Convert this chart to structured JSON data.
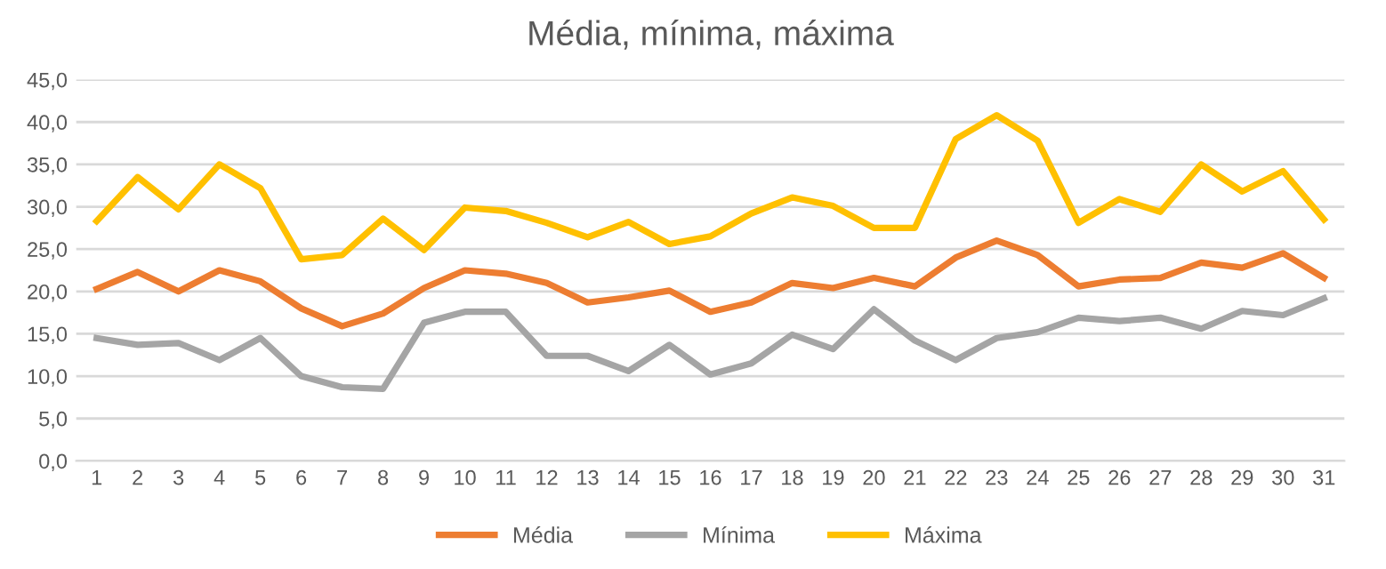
{
  "chart_data": {
    "type": "line",
    "title": "Média, mínima, máxima",
    "categories": [
      "1",
      "2",
      "3",
      "4",
      "5",
      "6",
      "7",
      "8",
      "9",
      "10",
      "11",
      "12",
      "13",
      "14",
      "15",
      "16",
      "17",
      "18",
      "19",
      "20",
      "21",
      "22",
      "23",
      "24",
      "25",
      "26",
      "27",
      "28",
      "29",
      "30",
      "31"
    ],
    "series": [
      {
        "name": "Média",
        "color": "#ed7d31",
        "values": [
          20.3,
          22.3,
          20.0,
          22.5,
          21.2,
          18.0,
          15.9,
          17.4,
          20.4,
          22.5,
          22.1,
          21.0,
          18.7,
          19.3,
          20.1,
          17.6,
          18.7,
          21.0,
          20.4,
          21.6,
          20.6,
          24.0,
          26.0,
          24.3,
          20.6,
          21.4,
          21.6,
          23.4,
          22.8,
          24.5,
          21.6
        ]
      },
      {
        "name": "Mínima",
        "color": "#a5a5a5",
        "values": [
          14.5,
          13.7,
          13.9,
          11.9,
          14.5,
          10.0,
          8.7,
          8.5,
          16.3,
          17.6,
          17.6,
          12.4,
          12.4,
          10.6,
          13.7,
          10.2,
          11.5,
          14.9,
          13.2,
          17.9,
          14.2,
          11.9,
          14.5,
          15.2,
          16.9,
          16.5,
          16.9,
          15.6,
          17.7,
          17.2,
          19.2
        ]
      },
      {
        "name": "Máxima",
        "color": "#ffc000",
        "values": [
          28.3,
          33.5,
          29.7,
          35.0,
          32.2,
          23.8,
          24.3,
          28.6,
          24.9,
          29.9,
          29.5,
          28.1,
          26.4,
          28.2,
          25.6,
          26.5,
          29.2,
          31.1,
          30.1,
          27.5,
          27.5,
          38.0,
          40.8,
          37.8,
          28.1,
          30.9,
          29.4,
          35.0,
          31.8,
          34.2,
          28.5
        ]
      }
    ],
    "ylim": [
      0,
      45
    ],
    "yticks": [
      {
        "value": 0,
        "label": "0,0"
      },
      {
        "value": 5,
        "label": "5,0"
      },
      {
        "value": 10,
        "label": "10,0"
      },
      {
        "value": 15,
        "label": "15,0"
      },
      {
        "value": 20,
        "label": "20,0"
      },
      {
        "value": 25,
        "label": "25,0"
      },
      {
        "value": 30,
        "label": "30,0"
      },
      {
        "value": 35,
        "label": "35,0"
      },
      {
        "value": 40,
        "label": "40,0"
      },
      {
        "value": 45,
        "label": "45,0"
      }
    ],
    "grid": "y",
    "legend": "bottom",
    "marker": "none",
    "line_style": "solid"
  }
}
